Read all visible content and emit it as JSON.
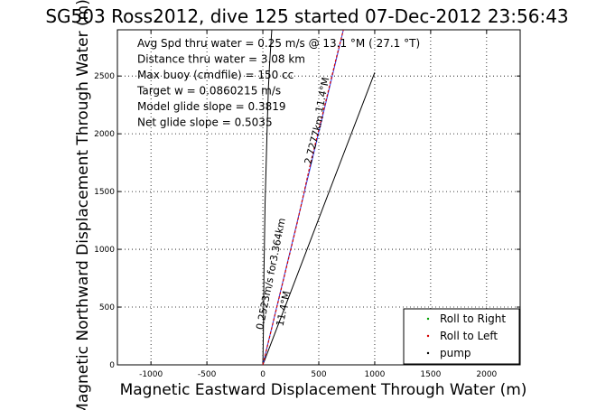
{
  "chart_data": {
    "type": "line",
    "title": "SG503 Ross2012, dive 125 started 07-Dec-2012 23:56:43",
    "xlabel": "Magnetic Eastward Displacement Through Water (m)",
    "ylabel": "Magnetic Northward Displacement Through Water (m)",
    "xlim": [
      -1300,
      2300
    ],
    "ylim": [
      0,
      2900
    ],
    "xticks": [
      -1000,
      -500,
      0,
      500,
      1000,
      1500,
      2000
    ],
    "yticks": [
      0,
      500,
      1000,
      1500,
      2000,
      2500
    ],
    "grid": true,
    "annotations": [
      "Avg Spd thru water =  0.25 m/s @  13.1   °M ( 27.1 °T)",
      "Distance thru water = 3.08 km",
      "Max buoy (cmdfile) = 150 cc",
      "Target w = 0.0860215 m/s",
      "Model glide slope = 0.3819",
      "Net glide slope = 0.5035"
    ],
    "slanted_labels": [
      {
        "text": "0.2523m/s for3.364km",
        "at": [
          0,
          300
        ],
        "angle_deg": 11.4
      },
      {
        "text": "11.4°M",
        "at": [
          180,
          330
        ],
        "angle_deg": 11.4
      },
      {
        "text": "2.7277km",
        "at": [
          430,
          1730
        ],
        "angle_deg": 14.5
      },
      {
        "text": "11.4°M",
        "at": [
          530,
          2180
        ],
        "angle_deg": 11.4
      }
    ],
    "series": [
      {
        "name": "black_drift",
        "color": "#000000",
        "x": [
          0,
          5,
          10,
          20,
          30,
          40,
          50,
          60,
          80
        ],
        "y": [
          0,
          300,
          800,
          1400,
          1750,
          2100,
          2400,
          2600,
          2900
        ]
      },
      {
        "name": "glide_line",
        "color": "#000000",
        "x": [
          0,
          1000
        ],
        "y": [
          0,
          2530
        ]
      },
      {
        "name": "heading_line",
        "color": "#1f3fff",
        "x": [
          0,
          720
        ],
        "y": [
          0,
          2900
        ]
      },
      {
        "name": "red_track",
        "color": "#d40000",
        "x": [
          0,
          150,
          300,
          430,
          560,
          660,
          720
        ],
        "y": [
          0,
          600,
          1200,
          1760,
          2270,
          2670,
          2900
        ]
      }
    ],
    "legend": {
      "placement": "bottom-right",
      "entries": [
        {
          "label": "Roll to Right",
          "color": "#00a000"
        },
        {
          "label": "Roll to Left",
          "color": "#d40000"
        },
        {
          "label": "pump",
          "color": "#000000"
        }
      ]
    }
  }
}
